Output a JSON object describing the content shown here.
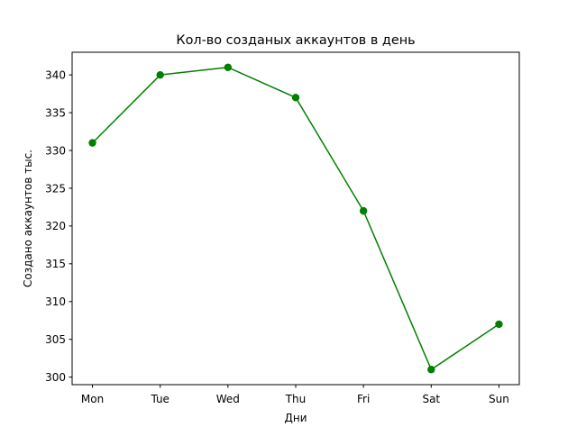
{
  "chart_data": {
    "type": "line",
    "title": "Кол-во созданых аккаунтов в день",
    "xlabel": "Дни",
    "ylabel": "Создано аккаунтов тыс.",
    "categories": [
      "Mon",
      "Tue",
      "Wed",
      "Thu",
      "Fri",
      "Sat",
      "Sun"
    ],
    "series": [
      {
        "values": [
          331,
          340,
          341,
          337,
          322,
          301,
          307
        ],
        "color": "#008000",
        "marker": "circle"
      }
    ],
    "ylim": [
      299.0,
      343.0
    ],
    "yticks": [
      300,
      305,
      310,
      315,
      320,
      325,
      330,
      335,
      340
    ],
    "grid": false,
    "legend": "none"
  }
}
